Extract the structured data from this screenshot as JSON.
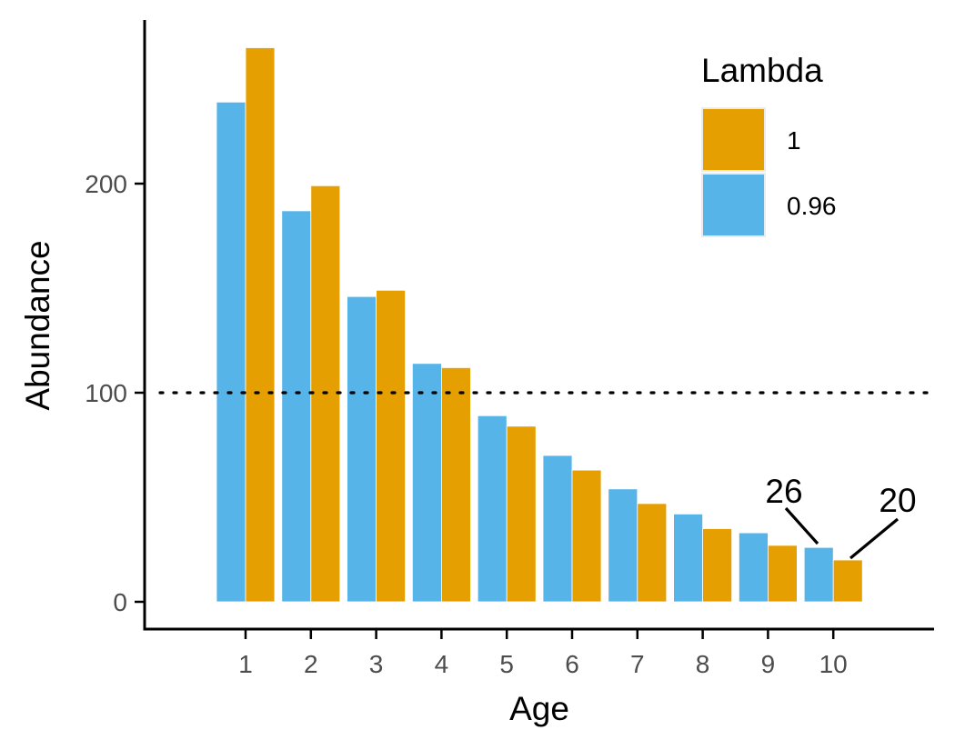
{
  "chart_data": {
    "type": "bar",
    "categories": [
      "1",
      "2",
      "3",
      "4",
      "5",
      "6",
      "7",
      "8",
      "9",
      "10"
    ],
    "series": [
      {
        "name": "0.96",
        "color": "#56B4E9",
        "values": [
          239,
          187,
          146,
          114,
          89,
          70,
          54,
          42,
          33,
          26
        ]
      },
      {
        "name": "1",
        "color": "#E69F00",
        "values": [
          265,
          199,
          149,
          112,
          84,
          63,
          47,
          35,
          27,
          20
        ]
      }
    ],
    "xlabel": "Age",
    "ylabel": "Abundance",
    "ylim": [
      -12,
      273
    ],
    "yticks": [
      0,
      100,
      200
    ],
    "grid": false,
    "reference_line": {
      "y": 100,
      "style": "dotted"
    },
    "legend": {
      "title": "Lambda",
      "placement": "top-right",
      "entries": [
        {
          "label": "1",
          "color": "#E69F00"
        },
        {
          "label": "0.96",
          "color": "#56B4E9"
        }
      ]
    },
    "annotations": [
      {
        "text": "26",
        "category": "10",
        "series": "0.96",
        "value": 26
      },
      {
        "text": "20",
        "category": "10",
        "series": "1",
        "value": 20
      }
    ]
  }
}
